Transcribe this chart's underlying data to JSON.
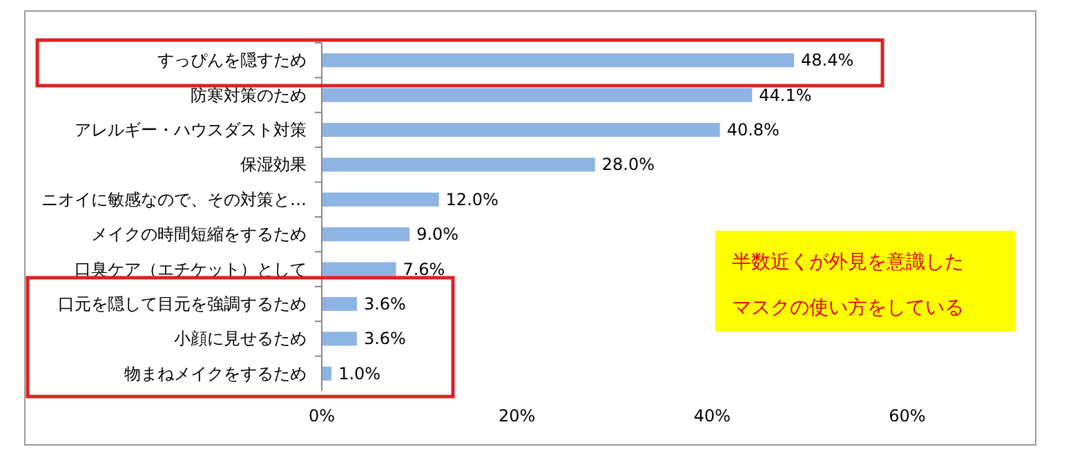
{
  "chart_data": {
    "type": "bar",
    "orientation": "horizontal",
    "categories": [
      "すっぴんを隠すため",
      "防寒対策のため",
      "アレルギー・ハウスダスト対策",
      "保湿効果",
      "ニオイに敏感なので、その対策と…",
      "メイクの時間短縮をするため",
      "口臭ケア（エチケット）として",
      "口元を隠して目元を強調するため",
      "小顔に見せるため",
      "物まねメイクをするため"
    ],
    "values": [
      48.4,
      44.1,
      40.8,
      28.0,
      12.0,
      9.0,
      7.6,
      3.6,
      3.6,
      1.0
    ],
    "value_labels": [
      "48.4%",
      "44.1%",
      "40.8%",
      "28.0%",
      "12.0%",
      "9.0%",
      "7.6%",
      "3.6%",
      "3.6%",
      "1.0%"
    ],
    "color": "#8eb4e3",
    "xlim": [
      0,
      60
    ],
    "xticks": [
      {
        "value": 0,
        "label": "0%"
      },
      {
        "value": 20,
        "label": "20%"
      },
      {
        "value": 40,
        "label": "40%"
      },
      {
        "value": 60,
        "label": "60%"
      }
    ],
    "annotations": [
      "半数近くが外見を意識した",
      "マスクの使い方をしている"
    ]
  }
}
